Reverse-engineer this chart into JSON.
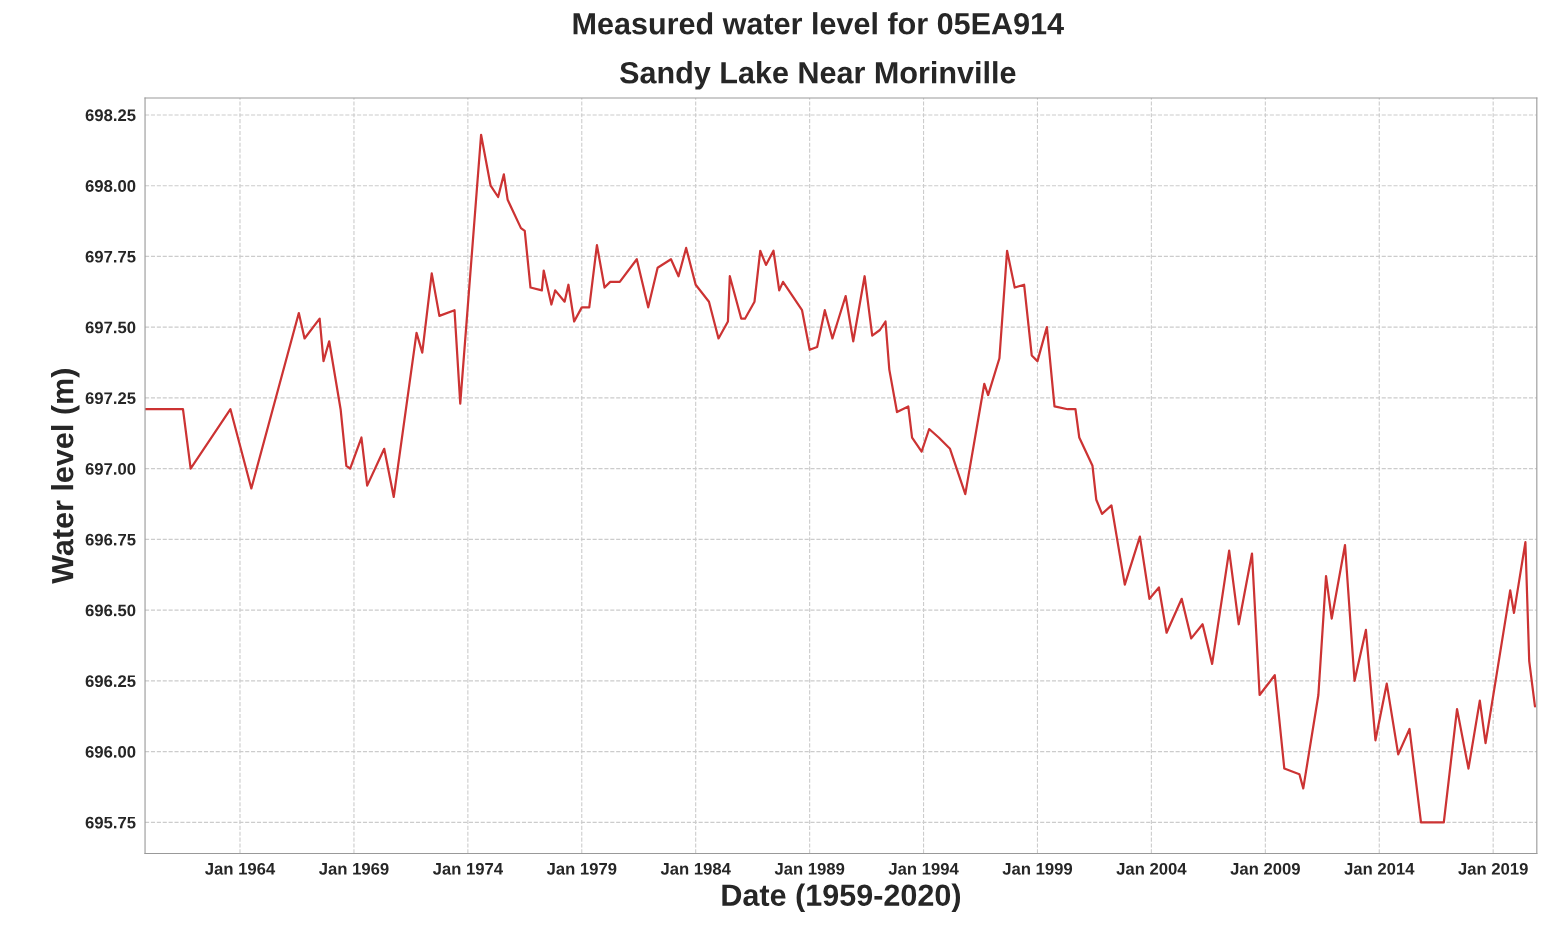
{
  "chart_data": {
    "type": "line",
    "title": "Measured water level for 05EA914",
    "subtitle": "Sandy Lake Near Morinville",
    "xlabel": "Date (1959-2020)",
    "ylabel": "Water level (m)",
    "x": [
      "1959-11",
      "1961-07",
      "1961-11",
      "1963-08",
      "1964-07",
      "1966-08",
      "1966-11",
      "1967-07",
      "1967-09",
      "1967-12",
      "1968-06",
      "1968-09",
      "1968-11",
      "1969-05",
      "1969-08",
      "1970-05",
      "1970-10",
      "1971-10",
      "1972-01",
      "1972-06",
      "1972-10",
      "1973-06",
      "1973-09",
      "1974-08",
      "1975-01",
      "1975-05",
      "1975-08",
      "1975-10",
      "1976-05",
      "1976-07",
      "1976-10",
      "1977-04",
      "1977-05",
      "1977-09",
      "1977-11",
      "1978-04",
      "1978-06",
      "1978-09",
      "1979-01",
      "1979-05",
      "1979-09",
      "1980-01",
      "1980-04",
      "1980-09",
      "1981-06",
      "1981-12",
      "1982-05",
      "1982-12",
      "1983-04",
      "1983-08",
      "1984-01",
      "1984-08",
      "1985-01",
      "1985-06",
      "1985-07",
      "1986-01",
      "1986-03",
      "1986-08",
      "1986-11",
      "1987-02",
      "1987-06",
      "1987-09",
      "1987-11",
      "1988-09",
      "1989-01",
      "1989-05",
      "1989-09",
      "1990-01",
      "1990-08",
      "1990-12",
      "1991-06",
      "1991-10",
      "1992-02",
      "1992-05",
      "1992-07",
      "1992-11",
      "1993-05",
      "1993-07",
      "1993-12",
      "1994-04",
      "1994-09",
      "1995-03",
      "1995-11",
      "1996-09",
      "1996-11",
      "1997-05",
      "1997-09",
      "1998-01",
      "1998-06",
      "1998-10",
      "1999-01",
      "1999-06",
      "1999-10",
      "2000-05",
      "2000-09",
      "2000-11",
      "2001-06",
      "2001-08",
      "2001-11",
      "2002-04",
      "2002-11",
      "2003-07",
      "2003-12",
      "2004-05",
      "2004-09",
      "2005-05",
      "2005-10",
      "2006-04",
      "2006-09",
      "2007-06",
      "2007-11",
      "2008-06",
      "2008-10",
      "2009-06",
      "2009-11",
      "2010-07",
      "2010-09",
      "2011-05",
      "2011-09",
      "2011-12",
      "2012-07",
      "2012-12",
      "2013-06",
      "2013-11",
      "2014-05",
      "2014-11",
      "2015-05",
      "2015-11",
      "2016-11",
      "2017-06",
      "2017-12",
      "2018-06",
      "2018-09",
      "2019-10",
      "2019-12",
      "2020-06",
      "2020-08",
      "2020-11"
    ],
    "series": [
      {
        "color": "#cc3333",
        "values": [
          697.21,
          697.21,
          697.0,
          697.21,
          696.93,
          697.55,
          697.46,
          697.53,
          697.38,
          697.45,
          697.21,
          697.01,
          697.0,
          697.11,
          696.94,
          697.07,
          696.9,
          697.48,
          697.41,
          697.69,
          697.54,
          697.56,
          697.23,
          698.18,
          698.0,
          697.96,
          698.04,
          697.95,
          697.85,
          697.84,
          697.64,
          697.63,
          697.7,
          697.58,
          697.63,
          697.59,
          697.65,
          697.52,
          697.57,
          697.57,
          697.79,
          697.64,
          697.66,
          697.66,
          697.74,
          697.57,
          697.71,
          697.74,
          697.68,
          697.78,
          697.65,
          697.59,
          697.46,
          697.52,
          697.68,
          697.53,
          697.53,
          697.59,
          697.77,
          697.72,
          697.77,
          697.63,
          697.66,
          697.56,
          697.42,
          697.43,
          697.56,
          697.46,
          697.61,
          697.45,
          697.68,
          697.47,
          697.49,
          697.52,
          697.35,
          697.2,
          697.22,
          697.11,
          697.06,
          697.14,
          697.11,
          697.07,
          696.91,
          697.3,
          697.26,
          697.39,
          697.77,
          697.64,
          697.65,
          697.4,
          697.38,
          697.5,
          697.22,
          697.21,
          697.21,
          697.11,
          697.01,
          696.89,
          696.84,
          696.87,
          696.59,
          696.76,
          696.54,
          696.58,
          696.42,
          696.54,
          696.4,
          696.45,
          696.31,
          696.71,
          696.45,
          696.7,
          696.2,
          696.27,
          695.94,
          695.92,
          695.87,
          696.2,
          696.62,
          696.47,
          696.73,
          696.25,
          696.43,
          696.04,
          696.24,
          695.99,
          696.08,
          695.75,
          695.75,
          696.15,
          695.94,
          696.18,
          696.03,
          696.57,
          696.49,
          696.74,
          696.32,
          696.16
        ]
      }
    ],
    "xlim": [
      "1959-11",
      "2020-12"
    ],
    "xticks": [
      {
        "value": "1964-01",
        "label": "Jan 1964"
      },
      {
        "value": "1969-01",
        "label": "Jan 1969"
      },
      {
        "value": "1974-01",
        "label": "Jan 1974"
      },
      {
        "value": "1979-01",
        "label": "Jan 1979"
      },
      {
        "value": "1984-01",
        "label": "Jan 1984"
      },
      {
        "value": "1989-01",
        "label": "Jan 1989"
      },
      {
        "value": "1994-01",
        "label": "Jan 1994"
      },
      {
        "value": "1999-01",
        "label": "Jan 1999"
      },
      {
        "value": "2004-01",
        "label": "Jan 2004"
      },
      {
        "value": "2009-01",
        "label": "Jan 2009"
      },
      {
        "value": "2014-01",
        "label": "Jan 2014"
      },
      {
        "value": "2019-01",
        "label": "Jan 2019"
      }
    ],
    "ylim": [
      695.64,
      698.31
    ],
    "yticks": [
      {
        "value": 695.75,
        "label": "695.75"
      },
      {
        "value": 696.0,
        "label": "696.00"
      },
      {
        "value": 696.25,
        "label": "696.25"
      },
      {
        "value": 696.5,
        "label": "696.50"
      },
      {
        "value": 696.75,
        "label": "696.75"
      },
      {
        "value": 697.0,
        "label": "697.00"
      },
      {
        "value": 697.25,
        "label": "697.25"
      },
      {
        "value": 697.5,
        "label": "697.50"
      },
      {
        "value": 697.75,
        "label": "697.75"
      },
      {
        "value": 698.0,
        "label": "698.00"
      },
      {
        "value": 698.25,
        "label": "698.25"
      }
    ],
    "grid": true
  }
}
